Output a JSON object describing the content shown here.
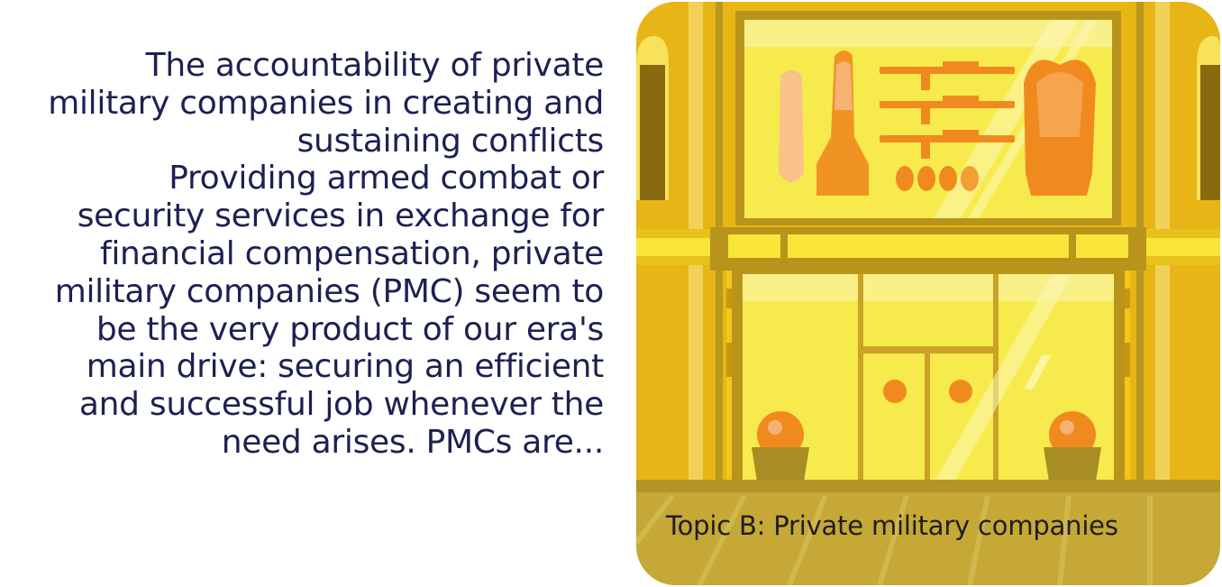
{
  "article": {
    "title": "The accountability of private military companies in creating and sustaining conflicts",
    "excerpt": "Providing armed combat or security services in exchange for financial compensation, private military companies (PMC) seem to be the very product of our era's main drive: securing an efficient and successful job whenever the need arises. PMCs are..."
  },
  "card": {
    "caption": "Topic B: Private military companies",
    "illustration_icon": "storefront-weapons-shop-illustration"
  },
  "colors": {
    "text": "#1c2151",
    "caption": "#1e1e1e",
    "wall_yellow": "#f5c518",
    "wall_dark": "#c9a227",
    "window_glass": "#f7ea4d",
    "weapon_orange": "#f08a1f",
    "floor": "#c5a835"
  }
}
